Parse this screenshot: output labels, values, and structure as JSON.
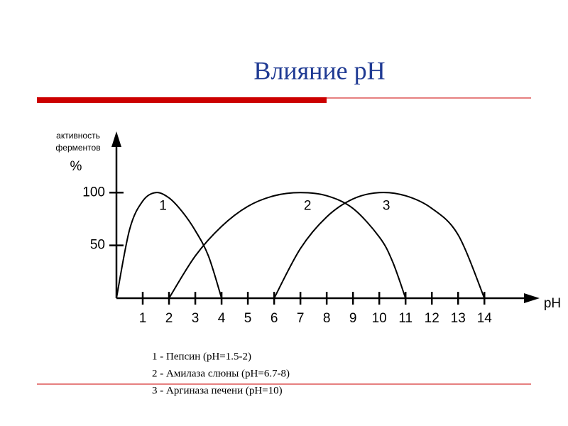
{
  "chart_data": {
    "type": "line",
    "title": "Влияние pH",
    "x_label": "pH",
    "y_label": [
      "активность",
      "ферментов",
      "%"
    ],
    "xlim": [
      0,
      16.1
    ],
    "xticks": [
      1,
      2,
      3,
      4,
      5,
      6,
      7,
      8,
      9,
      10,
      11,
      12,
      13,
      14
    ],
    "ylim": [
      0,
      158
    ],
    "yticks": [
      50,
      100
    ],
    "series": [
      {
        "name": "1",
        "color": "#000000",
        "x": [
          0,
          0.5,
          1,
          1.5,
          2,
          2.5,
          3,
          3.5,
          4
        ],
        "values": [
          0,
          65,
          92,
          100,
          95,
          82,
          64,
          40,
          0
        ]
      },
      {
        "name": "2",
        "color": "#000000",
        "x": [
          2,
          3,
          4,
          5,
          6,
          7,
          8,
          9,
          10,
          10.5,
          11
        ],
        "values": [
          0,
          40,
          68,
          87,
          97,
          100,
          97,
          85,
          58,
          35,
          0
        ]
      },
      {
        "name": "3",
        "color": "#000000",
        "x": [
          6,
          7,
          8,
          9,
          10,
          11,
          12,
          13,
          14
        ],
        "values": [
          0,
          47,
          77,
          94,
          100,
          97,
          85,
          60,
          0
        ]
      }
    ],
    "notes": [
      "1 - Пепсин (pH=1.5-2)",
      "2 - Амилаза слюны (pH=6.7-8)",
      "3 - Аргиназа печени (pH=10)"
    ]
  }
}
